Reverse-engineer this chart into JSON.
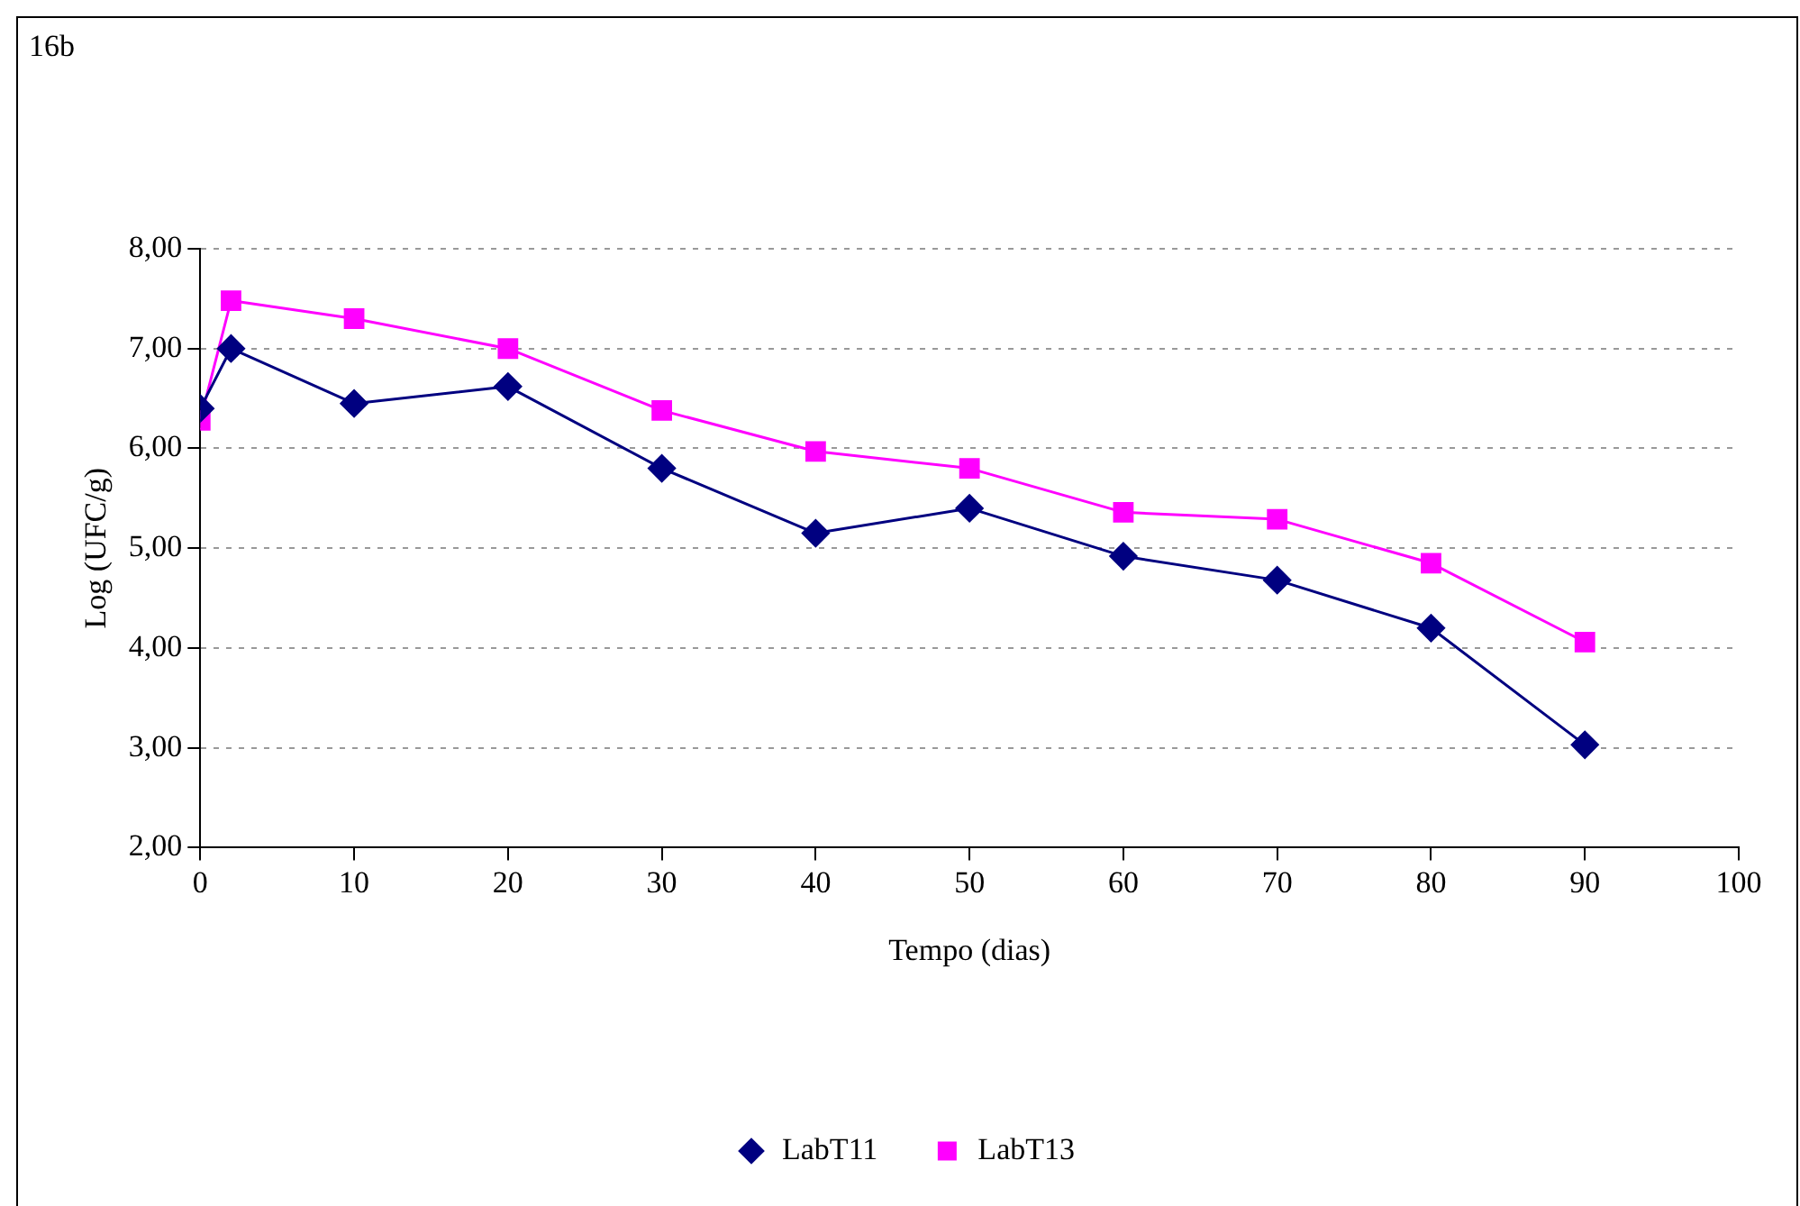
{
  "chart_data": {
    "type": "line",
    "annotations": [
      "16b"
    ],
    "xlabel": "Tempo (dias)",
    "ylabel": "Log (UFC/g)",
    "x": [
      0,
      2,
      10,
      20,
      30,
      40,
      50,
      60,
      70,
      80,
      90
    ],
    "series": [
      {
        "name": "LabT11",
        "color": "#000080",
        "marker": "diamond",
        "values": [
          6.4,
          7.0,
          6.45,
          6.62,
          5.8,
          5.15,
          5.4,
          4.92,
          4.68,
          4.2,
          3.03
        ]
      },
      {
        "name": "LabT13",
        "color": "#ff00ff",
        "marker": "square",
        "values": [
          6.28,
          7.48,
          7.3,
          7.0,
          6.38,
          5.97,
          5.8,
          5.36,
          5.29,
          4.85,
          4.06
        ]
      }
    ],
    "xlim": [
      0,
      100
    ],
    "xticks": [
      0,
      10,
      20,
      30,
      40,
      50,
      60,
      70,
      80,
      90,
      100
    ],
    "ylim": [
      2,
      8
    ],
    "yticks": [
      {
        "value": 2,
        "label": "2,00"
      },
      {
        "value": 3,
        "label": "3,00"
      },
      {
        "value": 4,
        "label": "4,00"
      },
      {
        "value": 5,
        "label": "5,00"
      },
      {
        "value": 6,
        "label": "6,00"
      },
      {
        "value": 7,
        "label": "7,00"
      },
      {
        "value": 8,
        "label": "8,00"
      }
    ],
    "grid": "y",
    "legend": "bottom",
    "line_style": "solid"
  }
}
